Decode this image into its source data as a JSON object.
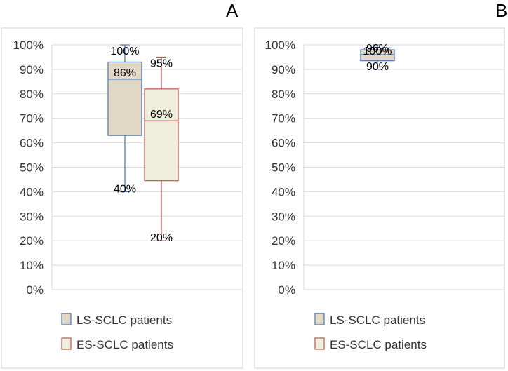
{
  "chart_data": [
    {
      "type": "boxplot",
      "panel": "A",
      "ylim": [
        0,
        100
      ],
      "yticks": [
        "0%",
        "10%",
        "20%",
        "30%",
        "40%",
        "50%",
        "60%",
        "70%",
        "80%",
        "90%",
        "100%"
      ],
      "series": [
        {
          "name": "LS-SCLC patients",
          "min": 40,
          "q1": 63,
          "median": 86,
          "q3": 93,
          "max": 100,
          "labels": {
            "max": "100%",
            "median": "86%",
            "min": "40%"
          },
          "stroke": "#4a73ad",
          "fill": "#e2d8c6"
        },
        {
          "name": "ES-SCLC patients",
          "min": 20,
          "q1": 44.5,
          "median": 69,
          "q3": 82,
          "max": 95,
          "labels": {
            "max": "95%",
            "median": "69%",
            "min": "20%"
          },
          "stroke": "#c0504d",
          "fill": "#eeeedd"
        }
      ]
    },
    {
      "type": "boxplot",
      "panel": "B",
      "ylim": [
        0,
        100
      ],
      "yticks": [
        "0%",
        "10%",
        "20%",
        "30%",
        "40%",
        "50%",
        "60%",
        "70%",
        "80%",
        "90%",
        "100%"
      ],
      "series": [
        {
          "name": "LS-SCLC patients",
          "min": 90,
          "q1": 93.5,
          "median": 96,
          "q3": 98,
          "max": 100,
          "labels": {
            "max": "100%",
            "median": "96%",
            "min": "90%"
          },
          "stroke": "#4a73ad",
          "fill": "#e2d8c6"
        },
        {
          "name": "ES-SCLC patients",
          "min": null,
          "q1": null,
          "median": null,
          "q3": null,
          "max": null,
          "labels": {},
          "stroke": "#c0504d",
          "fill": "#eeeedd"
        }
      ]
    }
  ]
}
